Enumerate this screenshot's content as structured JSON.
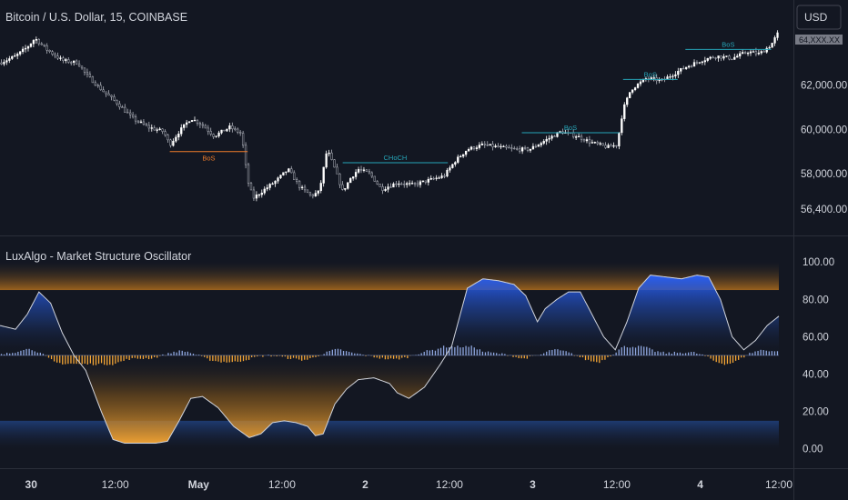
{
  "symbol_title": "Bitcoin / U.S. Dollar, 15, COINBASE",
  "currency_button": "USD",
  "current_price_label": "64,XXX.XX",
  "indicator_title": "LuxAlgo - Market Structure Oscillator",
  "colors": {
    "background": "#131722",
    "bull": "#2962ff",
    "bear": "#f7a735",
    "structure_bull": "#26a5b8",
    "structure_bear": "#ef7b2a",
    "text": "#d1d4dc",
    "grid": "#2a2e39"
  },
  "chart_data": [
    {
      "type": "candlestick",
      "title": "Bitcoin / U.S. Dollar, 15, COINBASE",
      "y_ticks": [
        "62,000.00",
        "60,000.00",
        "58,000.00",
        "56,400.00"
      ],
      "y_tick_values": [
        62000,
        60000,
        58000,
        56400
      ],
      "ylim": [
        56000,
        64600
      ],
      "x_ticks": [
        {
          "label": "30",
          "t": 0.04,
          "bold": true
        },
        {
          "label": "12:00",
          "t": 0.148,
          "bold": false
        },
        {
          "label": "May",
          "t": 0.255,
          "bold": true
        },
        {
          "label": "12:00",
          "t": 0.362,
          "bold": false
        },
        {
          "label": "2",
          "t": 0.469,
          "bold": true
        },
        {
          "label": "12:00",
          "t": 0.577,
          "bold": false
        },
        {
          "label": "3",
          "t": 0.684,
          "bold": true
        },
        {
          "label": "12:00",
          "t": 0.792,
          "bold": false
        },
        {
          "label": "4",
          "t": 0.899,
          "bold": true
        },
        {
          "label": "12:00",
          "t": 1.0,
          "bold": false
        }
      ],
      "price_path": [
        [
          0.0,
          63000
        ],
        [
          0.02,
          63300
        ],
        [
          0.035,
          63700
        ],
        [
          0.045,
          64100
        ],
        [
          0.06,
          63600
        ],
        [
          0.08,
          63100
        ],
        [
          0.1,
          63000
        ],
        [
          0.11,
          62500
        ],
        [
          0.13,
          61800
        ],
        [
          0.15,
          61200
        ],
        [
          0.17,
          60500
        ],
        [
          0.19,
          60100
        ],
        [
          0.21,
          59900
        ],
        [
          0.218,
          59300
        ],
        [
          0.23,
          59900
        ],
        [
          0.245,
          60500
        ],
        [
          0.26,
          60200
        ],
        [
          0.275,
          59700
        ],
        [
          0.295,
          60100
        ],
        [
          0.31,
          59800
        ],
        [
          0.318,
          57700
        ],
        [
          0.325,
          56900
        ],
        [
          0.34,
          57300
        ],
        [
          0.355,
          57700
        ],
        [
          0.37,
          58200
        ],
        [
          0.385,
          57400
        ],
        [
          0.4,
          57000
        ],
        [
          0.41,
          57200
        ],
        [
          0.42,
          59100
        ],
        [
          0.43,
          58200
        ],
        [
          0.44,
          57200
        ],
        [
          0.45,
          57800
        ],
        [
          0.46,
          58200
        ],
        [
          0.475,
          58000
        ],
        [
          0.49,
          57300
        ],
        [
          0.51,
          57600
        ],
        [
          0.53,
          57500
        ],
        [
          0.55,
          57700
        ],
        [
          0.57,
          57900
        ],
        [
          0.585,
          58600
        ],
        [
          0.6,
          59100
        ],
        [
          0.62,
          59300
        ],
        [
          0.64,
          59200
        ],
        [
          0.66,
          59100
        ],
        [
          0.68,
          59100
        ],
        [
          0.7,
          59500
        ],
        [
          0.72,
          59900
        ],
        [
          0.74,
          59700
        ],
        [
          0.76,
          59400
        ],
        [
          0.78,
          59200
        ],
        [
          0.792,
          59300
        ],
        [
          0.8,
          60900
        ],
        [
          0.81,
          61800
        ],
        [
          0.83,
          62300
        ],
        [
          0.85,
          62200
        ],
        [
          0.87,
          62600
        ],
        [
          0.88,
          62800
        ],
        [
          0.9,
          63100
        ],
        [
          0.92,
          63300
        ],
        [
          0.94,
          63200
        ],
        [
          0.96,
          63500
        ],
        [
          0.975,
          63400
        ],
        [
          0.99,
          63800
        ],
        [
          1.0,
          64400
        ]
      ],
      "structures": [
        {
          "label": "BoS",
          "kind": "bear",
          "t1": 0.218,
          "t2": 0.318,
          "price": 59000
        },
        {
          "label": "CHoCH",
          "kind": "bull",
          "t1": 0.44,
          "t2": 0.575,
          "price": 58500
        },
        {
          "label": "BoS",
          "kind": "bull",
          "t1": 0.67,
          "t2": 0.795,
          "price": 59850
        },
        {
          "label": "BoS",
          "kind": "bull",
          "t1": 0.8,
          "t2": 0.87,
          "price": 62250
        },
        {
          "label": "BoS",
          "kind": "bull",
          "t1": 0.88,
          "t2": 0.99,
          "price": 63600
        }
      ]
    },
    {
      "type": "oscillator",
      "title": "LuxAlgo - Market Structure Oscillator",
      "y_ticks": [
        "100.00",
        "80.00",
        "60.00",
        "40.00",
        "20.00",
        "0.00"
      ],
      "y_tick_values": [
        100,
        80,
        60,
        40,
        20,
        0
      ],
      "ylim": [
        -6,
        104
      ],
      "upper_zone": [
        85,
        100
      ],
      "lower_zone": [
        0,
        15
      ],
      "midline": 50,
      "oscillator_path": [
        [
          0.0,
          66
        ],
        [
          0.02,
          64
        ],
        [
          0.035,
          72
        ],
        [
          0.05,
          84
        ],
        [
          0.065,
          78
        ],
        [
          0.08,
          62
        ],
        [
          0.095,
          50
        ],
        [
          0.11,
          42
        ],
        [
          0.13,
          20
        ],
        [
          0.145,
          5
        ],
        [
          0.16,
          3
        ],
        [
          0.18,
          3
        ],
        [
          0.2,
          3
        ],
        [
          0.215,
          4
        ],
        [
          0.23,
          15
        ],
        [
          0.245,
          27
        ],
        [
          0.26,
          28
        ],
        [
          0.28,
          22
        ],
        [
          0.3,
          12
        ],
        [
          0.32,
          6
        ],
        [
          0.335,
          8
        ],
        [
          0.35,
          14
        ],
        [
          0.365,
          15
        ],
        [
          0.38,
          14
        ],
        [
          0.395,
          12
        ],
        [
          0.405,
          7
        ],
        [
          0.415,
          8
        ],
        [
          0.43,
          24
        ],
        [
          0.445,
          32
        ],
        [
          0.46,
          37
        ],
        [
          0.48,
          38
        ],
        [
          0.5,
          35
        ],
        [
          0.51,
          30
        ],
        [
          0.525,
          27
        ],
        [
          0.545,
          33
        ],
        [
          0.565,
          45
        ],
        [
          0.58,
          55
        ],
        [
          0.6,
          86
        ],
        [
          0.62,
          91
        ],
        [
          0.64,
          90
        ],
        [
          0.66,
          88
        ],
        [
          0.675,
          82
        ],
        [
          0.69,
          68
        ],
        [
          0.7,
          75
        ],
        [
          0.715,
          80
        ],
        [
          0.73,
          84
        ],
        [
          0.745,
          84
        ],
        [
          0.76,
          72
        ],
        [
          0.775,
          60
        ],
        [
          0.79,
          53
        ],
        [
          0.805,
          68
        ],
        [
          0.82,
          86
        ],
        [
          0.835,
          93
        ],
        [
          0.855,
          92
        ],
        [
          0.875,
          91
        ],
        [
          0.895,
          93
        ],
        [
          0.91,
          92
        ],
        [
          0.925,
          80
        ],
        [
          0.94,
          60
        ],
        [
          0.955,
          53
        ],
        [
          0.97,
          58
        ],
        [
          0.985,
          66
        ],
        [
          1.0,
          71
        ]
      ]
    }
  ]
}
